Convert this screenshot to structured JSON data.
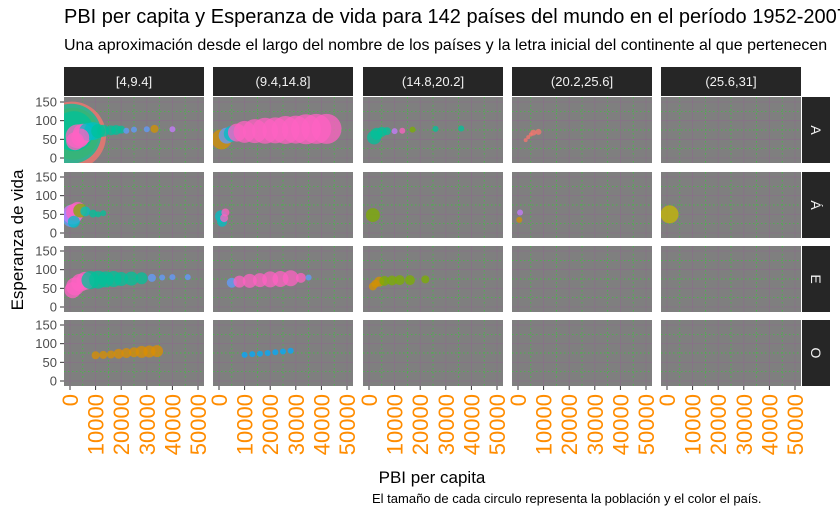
{
  "chart_data": {
    "type": "scatter",
    "title": "PBI per capita y Esperanza de vida para 142 países del mundo en el período 1952-2007",
    "subtitle": "Una aproximación desde el largo del nombre de los países y la letra inicial del continente al que pertenecen",
    "caption": "El tamaño de cada circulo representa la población y el color el país.",
    "xlabel": "PBI per capita",
    "ylabel": "Esperanza de vida",
    "facet_columns": [
      "[4,9.4]",
      "(9.4,14.8]",
      "(14.8,20.2]",
      "(20.2,25.6]",
      "(25.6,31]"
    ],
    "facet_rows": [
      "A",
      "Á",
      "E",
      "O"
    ],
    "xlim": [
      0,
      50000
    ],
    "ylim": [
      0,
      150
    ],
    "x_ticks": [
      "0",
      "10000",
      "20000",
      "30000",
      "40000",
      "50000"
    ],
    "y_ticks": [
      "0",
      "50",
      "100",
      "150"
    ],
    "grid": true,
    "colors": {
      "panel": "#7f7f7f",
      "strip": "#262626",
      "grid": "#32cd32",
      "tick_label": "#ff8c00",
      "axis_label": "#4d4d4d"
    },
    "panels": [
      {
        "row": 0,
        "col": 0,
        "points": [
          {
            "x": 800,
            "y": 60,
            "s": 34,
            "c": "#f8766d"
          },
          {
            "x": 1200,
            "y": 65,
            "s": 26,
            "c": "#d39200"
          },
          {
            "x": 500,
            "y": 65,
            "s": 30,
            "c": "#00c19a"
          },
          {
            "x": 1500,
            "y": 72,
            "s": 20,
            "c": "#00c19a"
          },
          {
            "x": 3000,
            "y": 58,
            "s": 12,
            "c": "#ff61c3"
          },
          {
            "x": 5000,
            "y": 65,
            "s": 10,
            "c": "#ff61c3"
          },
          {
            "x": 7000,
            "y": 70,
            "s": 9,
            "c": "#00bfc4"
          },
          {
            "x": 9000,
            "y": 72,
            "s": 9,
            "c": "#00bfc4"
          },
          {
            "x": 11000,
            "y": 72,
            "s": 7,
            "c": "#00c19a"
          },
          {
            "x": 13000,
            "y": 73,
            "s": 6,
            "c": "#00c19a"
          },
          {
            "x": 16000,
            "y": 74,
            "s": 5,
            "c": "#00c19a"
          },
          {
            "x": 18000,
            "y": 75,
            "s": 5,
            "c": "#00c19a"
          },
          {
            "x": 20000,
            "y": 76,
            "s": 4,
            "c": "#00c19a"
          },
          {
            "x": 22000,
            "y": 73,
            "s": 3,
            "c": "#619cff"
          },
          {
            "x": 25000,
            "y": 76,
            "s": 3,
            "c": "#619cff"
          },
          {
            "x": 30000,
            "y": 77,
            "s": 3,
            "c": "#619cff"
          },
          {
            "x": 33000,
            "y": 78,
            "s": 4,
            "c": "#d39200"
          },
          {
            "x": 40000,
            "y": 77,
            "s": 3,
            "c": "#c77cff"
          },
          {
            "x": 2000,
            "y": 45,
            "s": 9,
            "c": "#ff61c3"
          },
          {
            "x": 4000,
            "y": 55,
            "s": 9,
            "c": "#ff61c3"
          }
        ]
      },
      {
        "row": 0,
        "col": 1,
        "points": [
          {
            "x": 1000,
            "y": 50,
            "s": 10,
            "c": "#d39200"
          },
          {
            "x": 3000,
            "y": 60,
            "s": 8,
            "c": "#619cff"
          },
          {
            "x": 5000,
            "y": 65,
            "s": 8,
            "c": "#00bfc4"
          },
          {
            "x": 7000,
            "y": 68,
            "s": 9,
            "c": "#ff61c3"
          },
          {
            "x": 10000,
            "y": 70,
            "s": 11,
            "c": "#ff61c3"
          },
          {
            "x": 14000,
            "y": 72,
            "s": 12,
            "c": "#ff61c3"
          },
          {
            "x": 18000,
            "y": 73,
            "s": 13,
            "c": "#ff61c3"
          },
          {
            "x": 22000,
            "y": 74,
            "s": 13,
            "c": "#ff61c3"
          },
          {
            "x": 26000,
            "y": 75,
            "s": 14,
            "c": "#ff61c3"
          },
          {
            "x": 30000,
            "y": 76,
            "s": 14,
            "c": "#ff61c3"
          },
          {
            "x": 34000,
            "y": 77,
            "s": 15,
            "c": "#ff61c3"
          },
          {
            "x": 38000,
            "y": 78,
            "s": 15,
            "c": "#ff61c3"
          },
          {
            "x": 42000,
            "y": 78,
            "s": 15,
            "c": "#ff61c3"
          }
        ]
      },
      {
        "row": 0,
        "col": 2,
        "points": [
          {
            "x": 2000,
            "y": 55,
            "s": 7,
            "c": "#00c19a"
          },
          {
            "x": 3000,
            "y": 65,
            "s": 6,
            "c": "#00c19a"
          },
          {
            "x": 5000,
            "y": 70,
            "s": 5,
            "c": "#00c19a"
          },
          {
            "x": 7000,
            "y": 72,
            "s": 4,
            "c": "#00c19a"
          },
          {
            "x": 10000,
            "y": 72,
            "s": 3,
            "c": "#c77cff"
          },
          {
            "x": 13000,
            "y": 73,
            "s": 3,
            "c": "#ff61c3"
          },
          {
            "x": 17000,
            "y": 76,
            "s": 3,
            "c": "#7cae00"
          },
          {
            "x": 26000,
            "y": 78,
            "s": 3,
            "c": "#00c19a"
          },
          {
            "x": 36000,
            "y": 79,
            "s": 3,
            "c": "#00c19a"
          }
        ]
      },
      {
        "row": 0,
        "col": 3,
        "points": [
          {
            "x": 3000,
            "y": 48,
            "s": 2,
            "c": "#f8766d"
          },
          {
            "x": 4000,
            "y": 56,
            "s": 2,
            "c": "#f8766d"
          },
          {
            "x": 5000,
            "y": 63,
            "s": 2,
            "c": "#f8766d"
          },
          {
            "x": 6000,
            "y": 68,
            "s": 3,
            "c": "#f8766d"
          },
          {
            "x": 8000,
            "y": 70,
            "s": 3,
            "c": "#f8766d"
          }
        ]
      },
      {
        "row": 1,
        "col": 0,
        "points": [
          {
            "x": 500,
            "y": 40,
            "s": 9,
            "c": "#619cff"
          },
          {
            "x": 1000,
            "y": 50,
            "s": 10,
            "c": "#c77cff"
          },
          {
            "x": 2000,
            "y": 55,
            "s": 9,
            "c": "#ff61c3"
          },
          {
            "x": 3000,
            "y": 62,
            "s": 8,
            "c": "#ff61c3"
          },
          {
            "x": 4000,
            "y": 60,
            "s": 7,
            "c": "#7cae00"
          },
          {
            "x": 1500,
            "y": 30,
            "s": 6,
            "c": "#00bfc4"
          },
          {
            "x": 6000,
            "y": 58,
            "s": 5,
            "c": "#00bfc4"
          },
          {
            "x": 9000,
            "y": 52,
            "s": 4,
            "c": "#00c19a"
          },
          {
            "x": 11000,
            "y": 50,
            "s": 3,
            "c": "#00c19a"
          },
          {
            "x": 13000,
            "y": 53,
            "s": 3,
            "c": "#00c19a"
          }
        ]
      },
      {
        "row": 1,
        "col": 1,
        "points": [
          {
            "x": 800,
            "y": 45,
            "s": 6,
            "c": "#00bfc4"
          },
          {
            "x": 1200,
            "y": 30,
            "s": 5,
            "c": "#00bfc4"
          },
          {
            "x": 2000,
            "y": 40,
            "s": 4,
            "c": "#ff61c3"
          },
          {
            "x": 2500,
            "y": 55,
            "s": 4,
            "c": "#ff61c3"
          }
        ]
      },
      {
        "row": 1,
        "col": 2,
        "points": [
          {
            "x": 1500,
            "y": 48,
            "s": 7,
            "c": "#7cae00"
          }
        ]
      },
      {
        "row": 1,
        "col": 3,
        "points": [
          {
            "x": 500,
            "y": 35,
            "s": 3,
            "c": "#d39200"
          },
          {
            "x": 800,
            "y": 55,
            "s": 3,
            "c": "#c77cff"
          }
        ]
      },
      {
        "row": 1,
        "col": 4,
        "points": [
          {
            "x": 1000,
            "y": 50,
            "s": 9,
            "c": "#c5b800"
          }
        ]
      },
      {
        "row": 2,
        "col": 0,
        "points": [
          {
            "x": 1000,
            "y": 45,
            "s": 8,
            "c": "#ff61c3"
          },
          {
            "x": 2000,
            "y": 55,
            "s": 9,
            "c": "#ff61c3"
          },
          {
            "x": 4000,
            "y": 65,
            "s": 9,
            "c": "#ff61c3"
          },
          {
            "x": 6000,
            "y": 70,
            "s": 9,
            "c": "#ff61c3"
          },
          {
            "x": 8000,
            "y": 72,
            "s": 9,
            "c": "#00c19a"
          },
          {
            "x": 11000,
            "y": 73,
            "s": 9,
            "c": "#00c19a"
          },
          {
            "x": 14000,
            "y": 74,
            "s": 8,
            "c": "#00c19a"
          },
          {
            "x": 17000,
            "y": 75,
            "s": 8,
            "c": "#00c19a"
          },
          {
            "x": 20000,
            "y": 75,
            "s": 7,
            "c": "#00c19a"
          },
          {
            "x": 24000,
            "y": 76,
            "s": 7,
            "c": "#00c19a"
          },
          {
            "x": 28000,
            "y": 77,
            "s": 6,
            "c": "#00c19a"
          },
          {
            "x": 32000,
            "y": 78,
            "s": 4,
            "c": "#619cff"
          },
          {
            "x": 36000,
            "y": 79,
            "s": 3,
            "c": "#619cff"
          },
          {
            "x": 40000,
            "y": 80,
            "s": 3,
            "c": "#619cff"
          },
          {
            "x": 46000,
            "y": 80,
            "s": 3,
            "c": "#619cff"
          }
        ]
      },
      {
        "row": 2,
        "col": 1,
        "points": [
          {
            "x": 5000,
            "y": 65,
            "s": 5,
            "c": "#619cff"
          },
          {
            "x": 8000,
            "y": 68,
            "s": 6,
            "c": "#ff61c3"
          },
          {
            "x": 12000,
            "y": 70,
            "s": 7,
            "c": "#ff61c3"
          },
          {
            "x": 16000,
            "y": 72,
            "s": 7,
            "c": "#ff61c3"
          },
          {
            "x": 20000,
            "y": 74,
            "s": 8,
            "c": "#ff61c3"
          },
          {
            "x": 24000,
            "y": 75,
            "s": 8,
            "c": "#ff61c3"
          },
          {
            "x": 28000,
            "y": 77,
            "s": 8,
            "c": "#ff61c3"
          },
          {
            "x": 32000,
            "y": 78,
            "s": 5,
            "c": "#ff61c3"
          },
          {
            "x": 35000,
            "y": 79,
            "s": 3,
            "c": "#619cff"
          }
        ]
      },
      {
        "row": 2,
        "col": 2,
        "points": [
          {
            "x": 1500,
            "y": 55,
            "s": 4,
            "c": "#d39200"
          },
          {
            "x": 2500,
            "y": 62,
            "s": 4,
            "c": "#d39200"
          },
          {
            "x": 4000,
            "y": 68,
            "s": 5,
            "c": "#d39200"
          },
          {
            "x": 6000,
            "y": 70,
            "s": 5,
            "c": "#7cae00"
          },
          {
            "x": 9000,
            "y": 71,
            "s": 5,
            "c": "#7cae00"
          },
          {
            "x": 12000,
            "y": 72,
            "s": 5,
            "c": "#7cae00"
          },
          {
            "x": 16000,
            "y": 72,
            "s": 5,
            "c": "#7cae00"
          },
          {
            "x": 22000,
            "y": 74,
            "s": 4,
            "c": "#7cae00"
          }
        ]
      },
      {
        "row": 3,
        "col": 0,
        "points": [
          {
            "x": 10000,
            "y": 69,
            "s": 4,
            "c": "#db8e00"
          },
          {
            "x": 13000,
            "y": 70,
            "s": 4,
            "c": "#db8e00"
          },
          {
            "x": 16000,
            "y": 71,
            "s": 4,
            "c": "#db8e00"
          },
          {
            "x": 19000,
            "y": 73,
            "s": 5,
            "c": "#db8e00"
          },
          {
            "x": 22000,
            "y": 75,
            "s": 5,
            "c": "#db8e00"
          },
          {
            "x": 25000,
            "y": 77,
            "s": 5,
            "c": "#db8e00"
          },
          {
            "x": 28000,
            "y": 78,
            "s": 6,
            "c": "#db8e00"
          },
          {
            "x": 31000,
            "y": 79,
            "s": 6,
            "c": "#db8e00"
          },
          {
            "x": 34000,
            "y": 80,
            "s": 6,
            "c": "#db8e00"
          }
        ]
      },
      {
        "row": 3,
        "col": 1,
        "points": [
          {
            "x": 10000,
            "y": 70,
            "s": 3,
            "c": "#00a9ff"
          },
          {
            "x": 13000,
            "y": 72,
            "s": 3,
            "c": "#00a9ff"
          },
          {
            "x": 16000,
            "y": 73,
            "s": 3,
            "c": "#00a9ff"
          },
          {
            "x": 19000,
            "y": 75,
            "s": 3,
            "c": "#00a9ff"
          },
          {
            "x": 22000,
            "y": 77,
            "s": 3,
            "c": "#00a9ff"
          },
          {
            "x": 25000,
            "y": 79,
            "s": 3,
            "c": "#00a9ff"
          },
          {
            "x": 28000,
            "y": 81,
            "s": 3,
            "c": "#00a9ff"
          }
        ]
      }
    ]
  }
}
